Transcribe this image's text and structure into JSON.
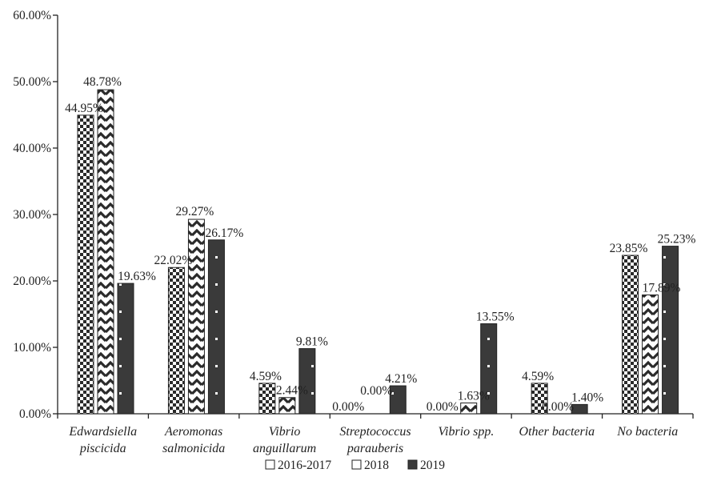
{
  "chart_data": {
    "type": "bar",
    "categories": [
      [
        "Edwardsiella",
        "piscicida"
      ],
      [
        "Aeromonas",
        "salmonicida"
      ],
      [
        "Vibrio",
        "anguillarum"
      ],
      [
        "Streptococcus",
        "parauberis"
      ],
      [
        "Vibrio spp."
      ],
      [
        "Other bacteria"
      ],
      [
        "No bacteria"
      ]
    ],
    "series": [
      {
        "name": "2016-2017",
        "values": [
          44.95,
          22.02,
          4.59,
          0.0,
          0.0,
          4.59,
          23.85
        ],
        "labels": [
          "44.95%",
          "22.02%",
          "4.59%",
          "0.00%",
          "0.00%",
          "4.59%",
          "23.85%"
        ],
        "pattern": "checker"
      },
      {
        "name": "2018",
        "values": [
          48.78,
          29.27,
          2.44,
          0.0,
          1.63,
          0.0,
          17.89
        ],
        "labels": [
          "48.78%",
          "29.27%",
          "2.44%",
          "0.00%",
          "1.63%",
          "0.00%",
          "17.89%"
        ],
        "pattern": "zigzag"
      },
      {
        "name": "2019",
        "values": [
          19.63,
          26.17,
          9.81,
          4.21,
          13.55,
          1.4,
          25.23
        ],
        "labels": [
          "19.63%",
          "26.17%",
          "9.81%",
          "4.21%",
          "13.55%",
          "1.40%",
          "25.23%"
        ],
        "pattern": "dark"
      }
    ],
    "y_ticks": [
      0,
      10,
      20,
      30,
      40,
      50,
      60
    ],
    "y_tick_labels": [
      "0.00%",
      "10.00%",
      "20.00%",
      "30.00%",
      "40.00%",
      "50.00%",
      "60.00%"
    ],
    "ylim": [
      0,
      60
    ],
    "title": "",
    "xlabel": "",
    "ylabel": "",
    "grid": false,
    "legend_position": "bottom",
    "colors": {
      "outline": "#222222",
      "pattern_dark": "#2a2a2a",
      "fill_2019": "#3a3a3a",
      "axis": "#222222"
    }
  }
}
